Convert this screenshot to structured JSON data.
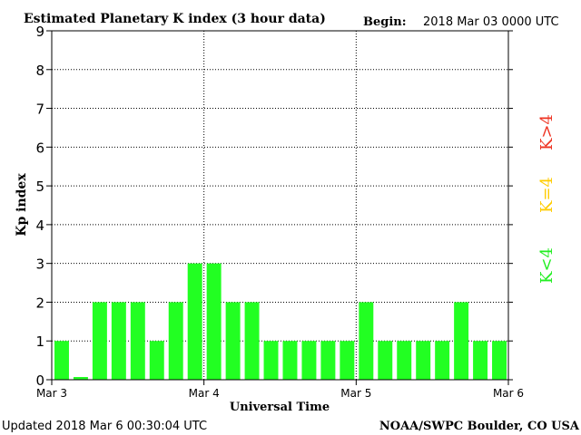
{
  "chart_data": {
    "type": "bar",
    "title": "Estimated Planetary K index (3 hour data)",
    "begin_label": "Begin:",
    "begin_value": "2018 Mar 03 0000 UTC",
    "ylabel": "Kp index",
    "xlabel": "Universal Time",
    "ylim": [
      0,
      9
    ],
    "yticks": [
      "0",
      "1",
      "2",
      "3",
      "4",
      "5",
      "6",
      "7",
      "8",
      "9"
    ],
    "x_tick_labels": [
      "Mar 3",
      "Mar 4",
      "Mar 5",
      "Mar 6"
    ],
    "interval_hours": 3,
    "values": [
      1,
      0.07,
      2,
      2,
      2,
      1,
      2,
      3,
      3,
      2,
      2,
      1,
      1,
      1,
      1,
      1,
      2,
      1,
      1,
      1,
      1,
      2,
      1,
      1
    ],
    "bar_color": "#22ff22",
    "grid": true,
    "legend": [
      {
        "label": "K<4",
        "color": "#22ee22"
      },
      {
        "label": "K=4",
        "color": "#ffcc00"
      },
      {
        "label": "K>4",
        "color": "#ee3322"
      }
    ]
  },
  "footer": {
    "updated": "Updated 2018 Mar  6 00:30:04 UTC",
    "credit": "NOAA/SWPC Boulder, CO USA"
  }
}
